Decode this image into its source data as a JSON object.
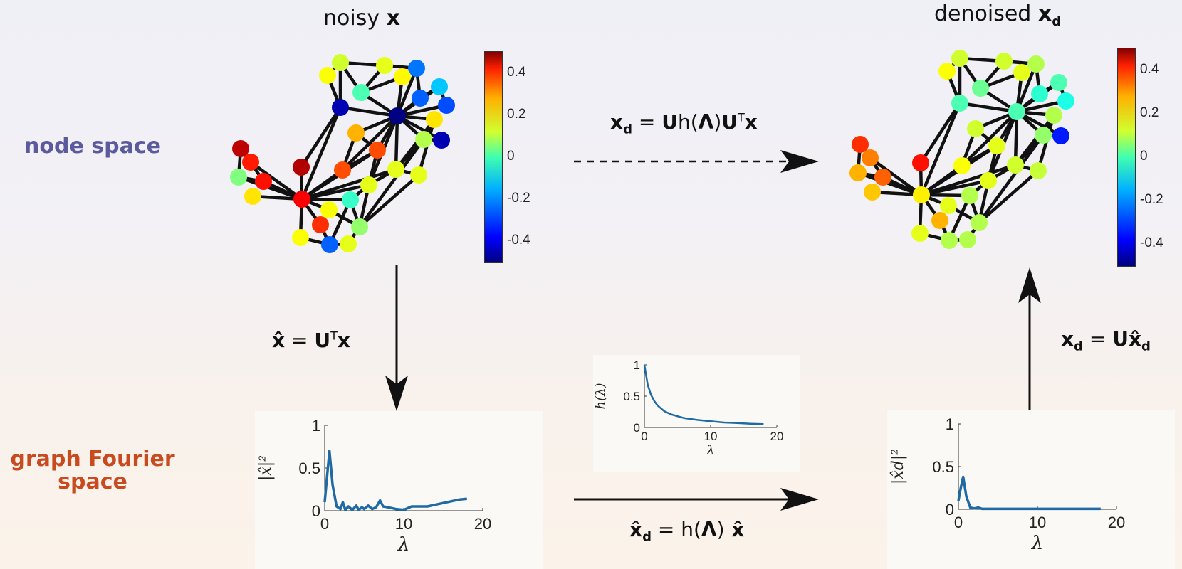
{
  "row_labels": {
    "node_space": "node space",
    "fourier_line1": "graph Fourier",
    "fourier_line2": "space"
  },
  "row_label_colors": {
    "node_space": "#5a5a9c",
    "fourier": "#c84a1e"
  },
  "titles": {
    "noisy_prefix": "noisy ",
    "noisy_symbol": "x",
    "denoised_prefix": "denoised ",
    "denoised_symbol": "x",
    "denoised_sub": "d"
  },
  "equations": {
    "filter_main": {
      "lhs": "x",
      "lhs_sub": "d",
      "eq": " = ",
      "u": "U",
      "h": "h(",
      "lam": "Λ",
      "close": ")",
      "u2": "U",
      "sup": "T",
      "x": "x"
    },
    "gft": {
      "lhs": "x̂",
      "eq": " = ",
      "u": "U",
      "sup": "T",
      "x": "x"
    },
    "igft": {
      "lhs": "x",
      "lhs_sub": "d",
      "eq": " = ",
      "u": "U",
      "x": "x̂",
      "x_sub": "d"
    },
    "spectral": {
      "lhs": "x̂",
      "lhs_sub": "d",
      "eq": " = ",
      "h": "h(",
      "lam": "Λ",
      "close": ")",
      "x": " x̂"
    }
  },
  "colorbar": {
    "ticks": [
      "0.4",
      "0.2",
      "0",
      "-0.2",
      "-0.4"
    ],
    "min": -0.5,
    "max": 0.5
  },
  "graph": {
    "nodes": [
      [
        478,
        82,
        0.08
      ],
      [
        540,
        86,
        0.1
      ],
      [
        585,
        90,
        -0.26
      ],
      [
        460,
        100,
        0.12
      ],
      [
        565,
        102,
        0.13
      ],
      [
        617,
        116,
        -0.18
      ],
      [
        507,
        124,
        -0.05
      ],
      [
        590,
        132,
        -0.28
      ],
      [
        627,
        142,
        -0.3
      ],
      [
        478,
        145,
        -0.45
      ],
      [
        558,
        157,
        -0.5
      ],
      [
        610,
        162,
        0.15
      ],
      [
        500,
        181,
        0.2
      ],
      [
        595,
        190,
        0.05
      ],
      [
        620,
        191,
        -0.45
      ],
      [
        530,
        205,
        0.3
      ],
      [
        338,
        203,
        0.44
      ],
      [
        352,
        222,
        0.35
      ],
      [
        335,
        243,
        0.0
      ],
      [
        370,
        249,
        0.36
      ],
      [
        423,
        229,
        0.45
      ],
      [
        481,
        233,
        0.3
      ],
      [
        556,
        232,
        0.1
      ],
      [
        588,
        240,
        0.1
      ],
      [
        518,
        254,
        0.1
      ],
      [
        355,
        270,
        0.15
      ],
      [
        424,
        274,
        0.38
      ],
      [
        492,
        275,
        -0.07
      ],
      [
        462,
        289,
        0.12
      ],
      [
        450,
        310,
        0.33
      ],
      [
        505,
        313,
        0.02
      ],
      [
        422,
        328,
        0.12
      ],
      [
        489,
        337,
        0.1
      ],
      [
        463,
        338,
        -0.28
      ]
    ],
    "edges": [
      [
        3,
        0
      ],
      [
        0,
        1
      ],
      [
        1,
        2
      ],
      [
        0,
        6
      ],
      [
        1,
        6
      ],
      [
        6,
        4
      ],
      [
        4,
        2
      ],
      [
        2,
        7
      ],
      [
        7,
        5
      ],
      [
        5,
        8
      ],
      [
        3,
        9
      ],
      [
        0,
        9
      ],
      [
        9,
        10
      ],
      [
        6,
        10
      ],
      [
        4,
        10
      ],
      [
        2,
        10
      ],
      [
        7,
        10
      ],
      [
        8,
        10
      ],
      [
        5,
        10
      ],
      [
        10,
        11
      ],
      [
        10,
        13
      ],
      [
        10,
        14
      ],
      [
        11,
        13
      ],
      [
        13,
        14
      ],
      [
        10,
        12
      ],
      [
        10,
        15
      ],
      [
        10,
        22
      ],
      [
        10,
        21
      ],
      [
        10,
        24
      ],
      [
        11,
        23
      ],
      [
        13,
        22
      ],
      [
        12,
        15
      ],
      [
        15,
        24
      ],
      [
        22,
        23
      ],
      [
        22,
        24
      ],
      [
        9,
        20
      ],
      [
        9,
        26
      ],
      [
        16,
        17
      ],
      [
        16,
        18
      ],
      [
        17,
        19
      ],
      [
        18,
        19
      ],
      [
        17,
        26
      ],
      [
        18,
        26
      ],
      [
        19,
        26
      ],
      [
        25,
        26
      ],
      [
        20,
        26
      ],
      [
        21,
        26
      ],
      [
        26,
        15
      ],
      [
        26,
        27
      ],
      [
        26,
        28
      ],
      [
        26,
        29
      ],
      [
        26,
        31
      ],
      [
        26,
        24
      ],
      [
        26,
        22
      ],
      [
        27,
        24
      ],
      [
        28,
        30
      ],
      [
        29,
        33
      ],
      [
        31,
        33
      ],
      [
        33,
        32
      ],
      [
        32,
        30
      ],
      [
        30,
        24
      ],
      [
        30,
        23
      ],
      [
        24,
        27
      ],
      [
        27,
        30
      ],
      [
        12,
        21
      ],
      [
        21,
        15
      ],
      [
        13,
        30
      ],
      [
        33,
        27
      ],
      [
        11,
        22
      ]
    ],
    "denoised_values": [
      0.08,
      0.08,
      0.05,
      0.12,
      0.1,
      -0.05,
      -0.02,
      -0.08,
      -0.1,
      -0.05,
      -0.05,
      0.05,
      0.08,
      0.02,
      -0.35,
      0.1,
      0.33,
      0.25,
      0.2,
      0.28,
      0.36,
      0.12,
      0.08,
      0.07,
      0.1,
      0.18,
      0.14,
      0.05,
      0.1,
      0.2,
      0.05,
      0.1,
      0.05,
      0.05
    ]
  },
  "chart_data": [
    {
      "type": "line",
      "ylabel": "|x̂|²",
      "xlabel": "λ",
      "xlim": [
        0,
        20
      ],
      "ylim": [
        0,
        1
      ],
      "xticks": [
        "0",
        "10",
        "20"
      ],
      "yticks": [
        "0",
        "0.5",
        "1"
      ],
      "x": [
        0,
        0.3,
        0.6,
        1,
        1.5,
        2,
        2.3,
        2.6,
        3,
        3.5,
        4,
        4.3,
        4.7,
        5,
        5.5,
        6,
        6.5,
        7,
        7.4,
        8,
        9,
        10,
        11,
        12,
        13,
        14,
        15,
        16,
        17,
        18
      ],
      "y": [
        0.1,
        0.4,
        0.7,
        0.3,
        0.05,
        0.02,
        0.1,
        0.01,
        0.05,
        0.01,
        0.06,
        0.01,
        0.04,
        0.02,
        0.06,
        0.02,
        0.04,
        0.12,
        0.05,
        0.04,
        0.02,
        0.01,
        0.05,
        0.05,
        0.05,
        0.07,
        0.09,
        0.11,
        0.13,
        0.14
      ]
    },
    {
      "type": "line",
      "ylabel": "h(λ)",
      "xlabel": "λ",
      "xlim": [
        0,
        20
      ],
      "ylim": [
        0,
        1
      ],
      "xticks": [
        "0",
        "10",
        "20"
      ],
      "yticks": [
        "0",
        "0.5",
        "1"
      ],
      "x": [
        0,
        0.5,
        1,
        1.5,
        2,
        3,
        4,
        5,
        6,
        8,
        10,
        12,
        14,
        16,
        18
      ],
      "y": [
        1,
        0.68,
        0.52,
        0.42,
        0.35,
        0.26,
        0.21,
        0.18,
        0.15,
        0.12,
        0.1,
        0.08,
        0.07,
        0.06,
        0.055
      ]
    },
    {
      "type": "line",
      "ylabel": "|x̂d|²",
      "xlabel": "λ",
      "xlim": [
        0,
        20
      ],
      "ylim": [
        0,
        1
      ],
      "xticks": [
        "0",
        "10",
        "20"
      ],
      "yticks": [
        "0",
        "0.5",
        "1"
      ],
      "x": [
        0,
        0.3,
        0.6,
        1,
        1.5,
        2,
        2.5,
        3,
        4,
        6,
        8,
        10,
        12,
        14,
        16,
        18
      ],
      "y": [
        0.1,
        0.25,
        0.38,
        0.15,
        0.02,
        0.01,
        0.02,
        0.005,
        0.005,
        0.005,
        0.005,
        0.005,
        0.005,
        0.005,
        0.005,
        0.005
      ]
    }
  ],
  "colors": {
    "line": "#1f6aa5",
    "edge": "#111111"
  }
}
